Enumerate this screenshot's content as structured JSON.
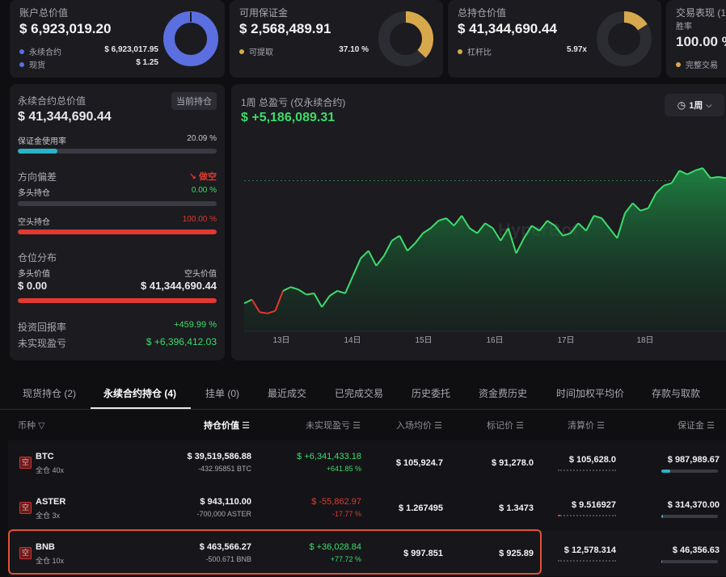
{
  "cards": {
    "account": {
      "label": "账户总价值",
      "value": "$ 6,923,019.20",
      "rows": [
        {
          "label": "永续合约",
          "value": "$ 6,923,017.95",
          "color": "#5b6fe0"
        },
        {
          "label": "现货",
          "value": "$ 1.25",
          "color": "#5b6fe0"
        }
      ],
      "donut": {
        "fraction": 1.0,
        "color": "#5b6fe0"
      }
    },
    "margin": {
      "label": "可用保证金",
      "value": "$ 2,568,489.91",
      "rows": [
        {
          "label": "可提取",
          "value": "37.10 %",
          "color": "#d8a94c"
        }
      ],
      "donut": {
        "fraction": 0.371,
        "color": "#d8a94c"
      }
    },
    "position_value": {
      "label": "总持仓价值",
      "value": "$ 41,344,690.44",
      "rows": [
        {
          "label": "杠杆比",
          "value": "5.97x",
          "color": "#d8a94c"
        }
      ],
      "donut": {
        "fraction": 0.16,
        "color": "#d8a94c"
      }
    },
    "performance": {
      "label": "交易表现 (1",
      "sub": "胜率",
      "value": "100.00 %",
      "rows": [
        {
          "label": "完整交易",
          "color": "#d8a94c"
        }
      ]
    }
  },
  "perp": {
    "label": "永续合约总价值",
    "badge": "当前持仓",
    "value": "$ 41,344,690.44",
    "margin_usage_label": "保证金使用率",
    "margin_usage_value": "20.09 %",
    "margin_usage_fraction": 0.2009,
    "direction_label": "方向偏差",
    "direction_value": "做空",
    "long_label": "多头持仓",
    "long_value": "0.00 %",
    "long_fraction": 0.0,
    "short_label": "空头持仓",
    "short_value": "100.00 %",
    "short_fraction": 1.0,
    "dist_label": "仓位分布",
    "long_val_label": "多头价值",
    "short_val_label": "空头价值",
    "long_val": "$ 0.00",
    "short_val": "$ 41,344,690.44",
    "roi_label": "投资回报率",
    "roi_value": "+459.99 %",
    "upnl_label": "未实现盈亏",
    "upnl_value": "$ +6,396,412.03"
  },
  "pnl_chart": {
    "title": "1周 总盈亏 (仅永续合约)",
    "value": "$ +5,186,089.31",
    "period": "1周",
    "watermark": "HyperBot"
  },
  "chart_data": {
    "type": "area",
    "title": "1周 总盈亏 (仅永续合约)",
    "x_ticks": [
      "13日",
      "14日",
      "15日",
      "16日",
      "17日",
      "18日"
    ],
    "ylim": [
      -0.4,
      5.6
    ],
    "baseline_value": 5.1,
    "values": [
      0.2,
      0.35,
      -0.15,
      -0.2,
      -0.1,
      0.7,
      0.85,
      0.75,
      0.55,
      0.6,
      0.05,
      0.5,
      0.7,
      0.6,
      1.3,
      2.0,
      2.3,
      1.7,
      2.1,
      2.7,
      2.9,
      2.3,
      2.6,
      3.0,
      3.2,
      3.5,
      3.6,
      3.3,
      3.7,
      3.2,
      3.0,
      3.4,
      3.2,
      2.7,
      3.2,
      2.2,
      2.8,
      3.3,
      3.1,
      3.5,
      3.3,
      2.9,
      3.0,
      3.4,
      3.1,
      3.7,
      3.6,
      3.2,
      2.8,
      3.8,
      4.2,
      3.9,
      4.0,
      4.6,
      4.9,
      5.0,
      5.5,
      5.35,
      5.5,
      5.6,
      5.2,
      5.25,
      5.2
    ]
  },
  "tabs": [
    {
      "label": "现货持仓 (2)"
    },
    {
      "label": "永续合约持仓 (4)"
    },
    {
      "label": "挂单 (0)"
    },
    {
      "label": "最近成交"
    },
    {
      "label": "已完成交易"
    },
    {
      "label": "历史委托"
    },
    {
      "label": "资金费历史"
    },
    {
      "label": "时间加权平均价"
    },
    {
      "label": "存款与取款"
    }
  ],
  "table": {
    "headers": {
      "symbol": "币种",
      "value": "持仓价值",
      "upnl": "未实现盈亏",
      "entry": "入场均价",
      "mark": "标记价",
      "liq": "清算价",
      "margin": "保证金"
    },
    "rows": [
      {
        "side": "空",
        "symbol": "BTC",
        "mode": "全仓 40x",
        "value": "$ 39,519,586.88",
        "size": "-432.95851 BTC",
        "upnl": "$ +6,341,433.18",
        "upnl_pct": "+641.85 %",
        "entry": "$ 105,924.7",
        "mark": "$ 91,278.0",
        "liq": "$ 105,628.0",
        "margin": "$ 987,989.67",
        "liq_fill": 0.0,
        "margin_fill": 0.16
      },
      {
        "side": "空",
        "symbol": "ASTER",
        "mode": "全仓 3x",
        "value": "$ 943,110.00",
        "size": "-700,000 ASTER",
        "upnl": "$ -55,862.97",
        "upnl_pct": "-17.77 %",
        "entry": "$ 1.267495",
        "mark": "$ 1.3473",
        "liq": "$ 9.516927",
        "margin": "$ 314,370.00",
        "liq_fill": 0.03,
        "margin_fill": 0.03
      },
      {
        "side": "空",
        "symbol": "BNB",
        "mode": "全仓 10x",
        "value": "$ 463,566.27",
        "size": "-500.671 BNB",
        "upnl": "$ +36,028.84",
        "upnl_pct": "+77.72 %",
        "entry": "$ 997.851",
        "mark": "$ 925.89",
        "liq": "$ 12,578.314",
        "margin": "$ 46,356.63",
        "liq_fill": 0.0,
        "margin_fill": 0.02
      }
    ]
  },
  "colors": {
    "green": "#3ddc6a",
    "red": "#e0392f",
    "highlight_border": "#e0503a",
    "usage_bar": "#2ab3c8"
  }
}
